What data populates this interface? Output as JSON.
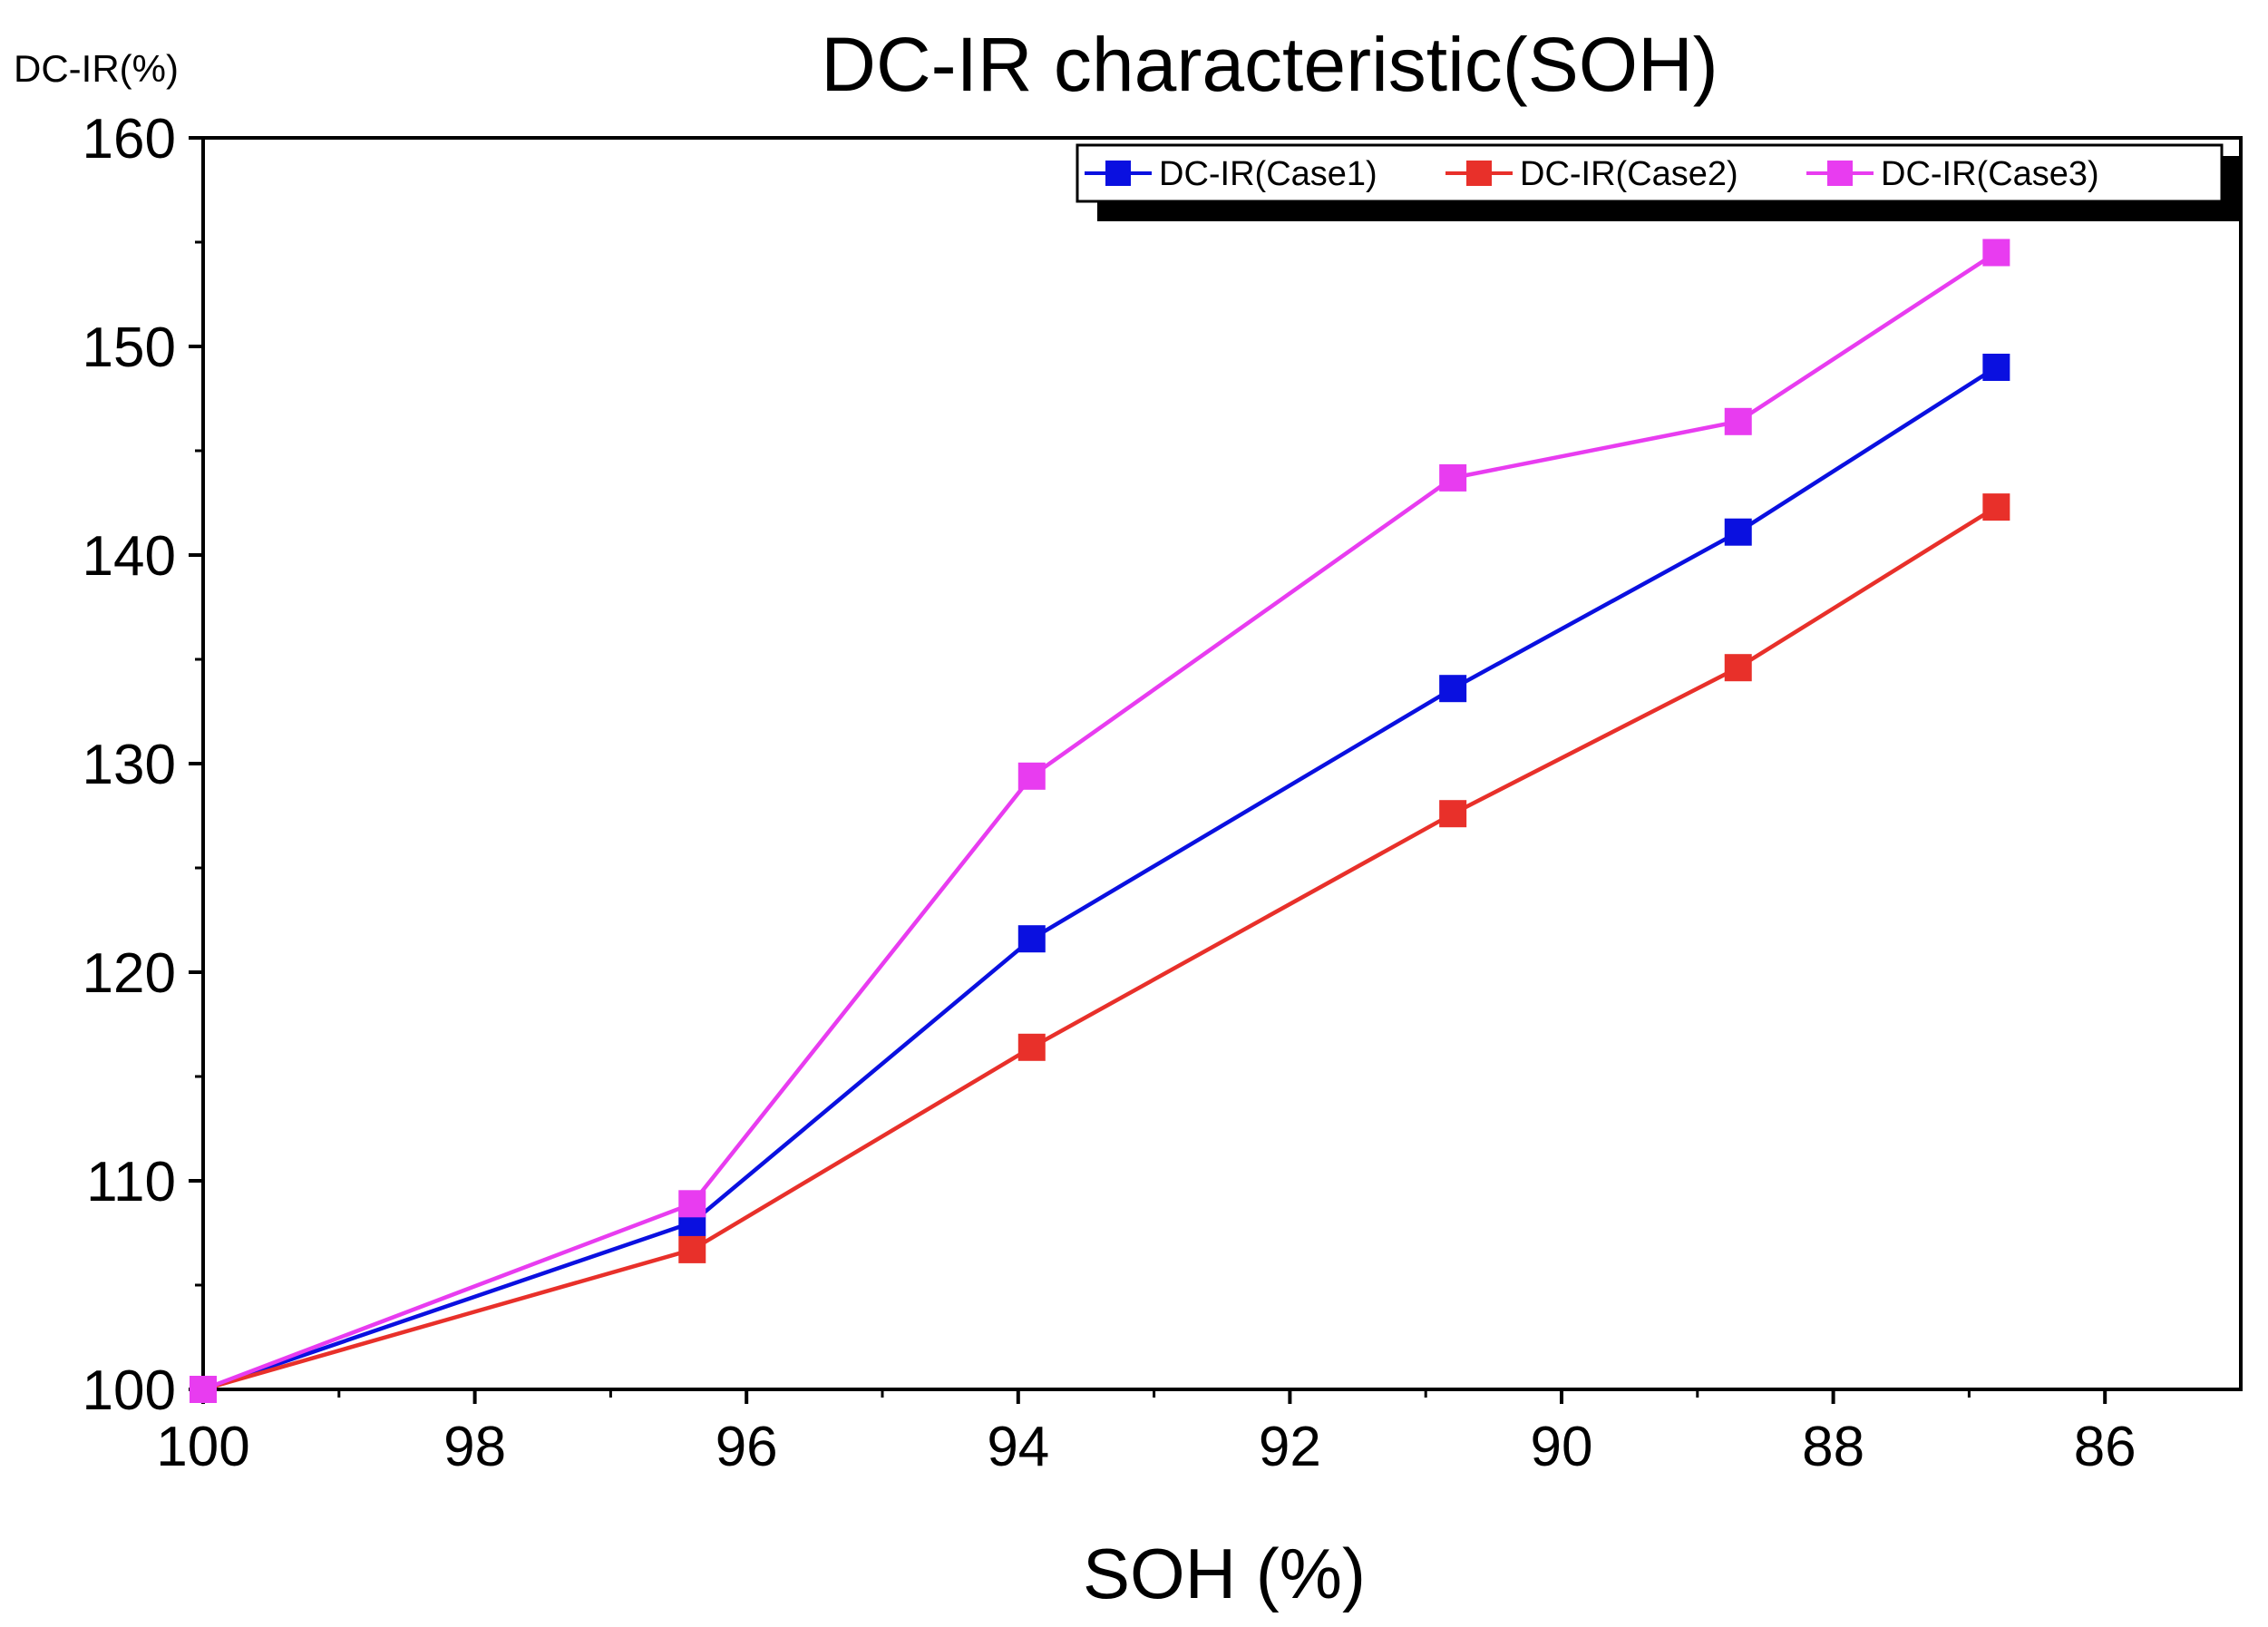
{
  "chart_data": {
    "type": "line",
    "title": "DC-IR characteristic(SOH)",
    "xlabel": "SOH (%)",
    "ylabel": "DC-IR(%)",
    "xlim": [
      100,
      85
    ],
    "ylim": [
      100,
      160
    ],
    "x_ticks": [
      100,
      98,
      96,
      94,
      92,
      90,
      88,
      86
    ],
    "y_ticks": [
      100,
      110,
      120,
      130,
      140,
      150,
      160
    ],
    "x_ticks_labels": [
      "100",
      "98",
      "96",
      "94",
      "92",
      "90",
      "88",
      "86"
    ],
    "y_ticks_labels": [
      "100",
      "110",
      "120",
      "130",
      "140",
      "150",
      "160"
    ],
    "legend_position": "top-right",
    "series": [
      {
        "name": "DC-IR(Case1)",
        "color": "#0a10e0",
        "x": [
          100,
          96.4,
          93.9,
          90.8,
          88.7,
          86.8
        ],
        "y": [
          100,
          108.0,
          121.6,
          133.6,
          141.1,
          149.0
        ]
      },
      {
        "name": "DC-IR(Case2)",
        "color": "#e8302a",
        "x": [
          100,
          96.4,
          93.9,
          90.8,
          88.7,
          86.8
        ],
        "y": [
          100,
          106.7,
          116.4,
          127.6,
          134.6,
          142.3
        ]
      },
      {
        "name": "DC-IR(Case3)",
        "color": "#e83cf0",
        "x": [
          100,
          96.4,
          93.9,
          90.8,
          88.7,
          86.8
        ],
        "y": [
          100,
          108.9,
          129.4,
          143.7,
          146.4,
          154.5
        ]
      }
    ]
  }
}
